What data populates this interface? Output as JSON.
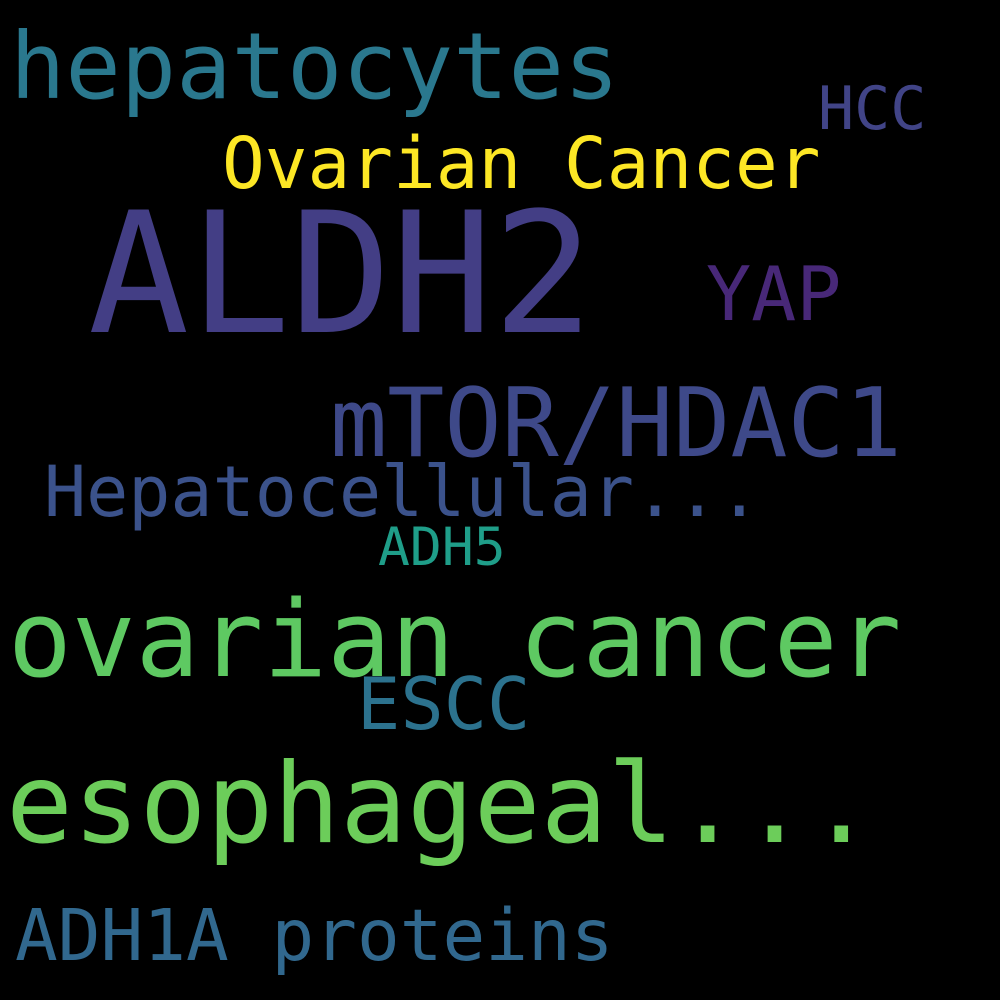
{
  "background": "#000000",
  "words": [
    {
      "id": "hepatocytes",
      "text": "hepatocytes",
      "color": "#2a788e"
    },
    {
      "id": "hcc",
      "text": "HCC",
      "color": "#414487"
    },
    {
      "id": "ovarian_cap",
      "text": "Ovarian Cancer",
      "color": "#fde725"
    },
    {
      "id": "aldh2",
      "text": "ALDH2",
      "color": "#433e85"
    },
    {
      "id": "yap",
      "text": "YAP",
      "color": "#482878"
    },
    {
      "id": "mtor",
      "text": "mTOR/HDAC1",
      "color": "#3e4989"
    },
    {
      "id": "hepatocell",
      "text": "Hepatocellular...",
      "color": "#3b528b"
    },
    {
      "id": "adh5",
      "text": "ADH5",
      "color": "#1f9e89"
    },
    {
      "id": "ovarian_low",
      "text": "ovarian cancer",
      "color": "#5ec962"
    },
    {
      "id": "escc",
      "text": "ESCC",
      "color": "#2c728e"
    },
    {
      "id": "esophageal",
      "text": "esophageal...",
      "color": "#6ccd5a"
    },
    {
      "id": "adh1a",
      "text": "ADH1A proteins",
      "color": "#31688e"
    }
  ]
}
